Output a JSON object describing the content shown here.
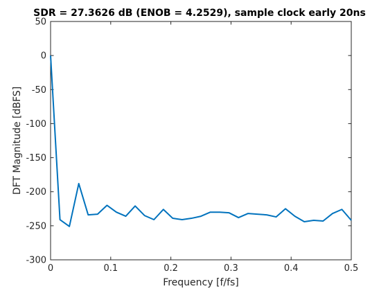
{
  "chart_data": {
    "type": "line",
    "title": "SDR = 27.3626 dB (ENOB = 4.2529), sample clock early 20ns",
    "xlabel": "Frequency [f/fs]",
    "ylabel": "DFT Magnitude [dBFS]",
    "xlim": [
      0,
      0.5
    ],
    "ylim": [
      -300,
      50
    ],
    "xticks": [
      0,
      0.1,
      0.2,
      0.3,
      0.4,
      0.5
    ],
    "xtick_labels": [
      "0",
      "0.1",
      "0.2",
      "0.3",
      "0.4",
      "0.5"
    ],
    "yticks": [
      -300,
      -250,
      -200,
      -150,
      -100,
      -50,
      0,
      50
    ],
    "ytick_labels": [
      "-300",
      "-250",
      "-200",
      "-150",
      "-100",
      "-50",
      "0",
      "50"
    ],
    "grid": false,
    "line_color": "#0072bd",
    "series": [
      {
        "x": [
          0,
          0.015625,
          0.03125,
          0.046875,
          0.0625,
          0.078125,
          0.09375,
          0.109375,
          0.125,
          0.140625,
          0.15625,
          0.171875,
          0.1875,
          0.203125,
          0.21875,
          0.234375,
          0.25,
          0.265625,
          0.28125,
          0.296875,
          0.3125,
          0.328125,
          0.34375,
          0.359375,
          0.375,
          0.390625,
          0.40625,
          0.421875,
          0.4375,
          0.453125,
          0.46875,
          0.484375,
          0.5
        ],
        "y": [
          0,
          -241,
          -251,
          -188,
          -234,
          -233,
          -220,
          -230,
          -236,
          -221,
          -235,
          -241,
          -226,
          -239,
          -241,
          -239,
          -236,
          -230,
          -230,
          -231,
          -238,
          -232,
          -233,
          -234,
          -237,
          -225,
          -236,
          -244,
          -242,
          -243,
          -232,
          -226,
          -242
        ]
      }
    ]
  }
}
